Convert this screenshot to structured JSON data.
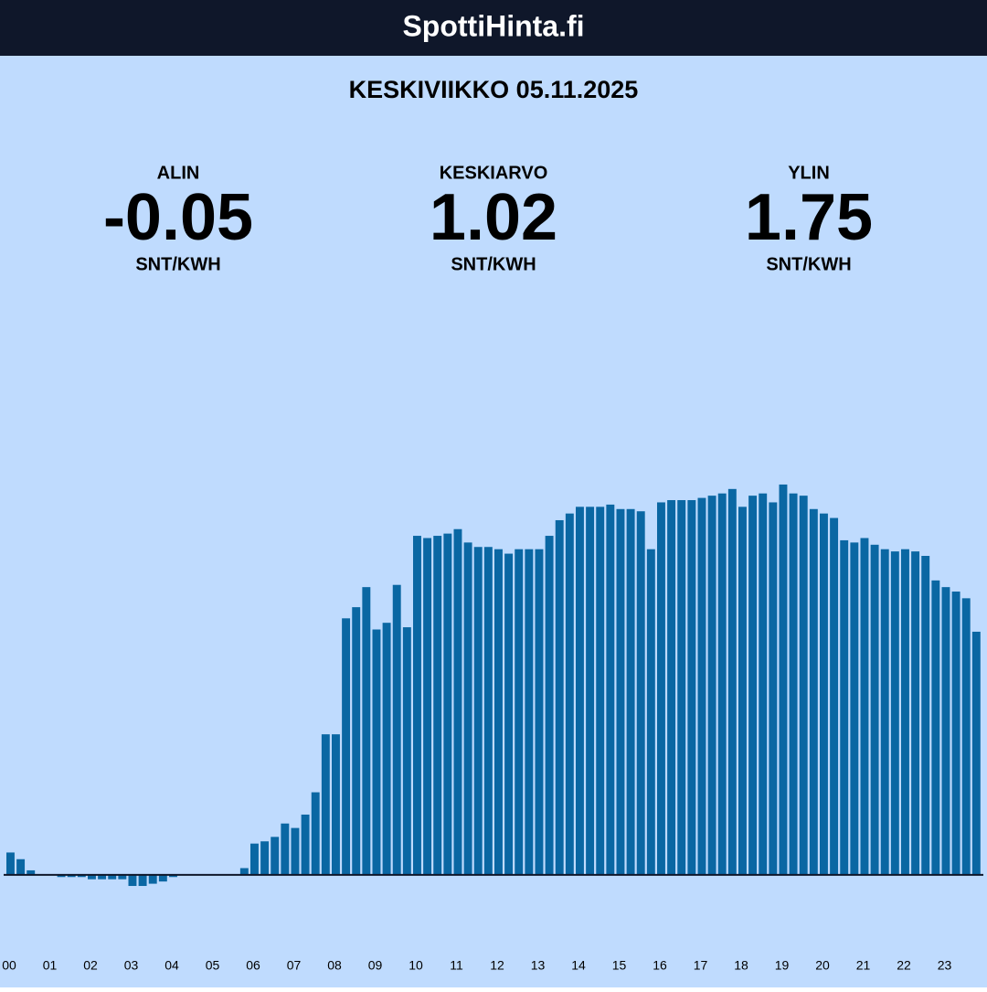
{
  "header": {
    "title": "SpottiHinta.fi"
  },
  "date": "KESKIVIIKKO 05.11.2025",
  "stats": [
    {
      "label": "ALIN",
      "value": "-0.05",
      "unit": "SNT/KWH"
    },
    {
      "label": "KESKIARVO",
      "value": "1.02",
      "unit": "SNT/KWH"
    },
    {
      "label": "YLIN",
      "value": "1.75",
      "unit": "SNT/KWH"
    }
  ],
  "chart_data": {
    "type": "bar",
    "color": "#0a67a3",
    "ylim": [
      -0.3,
      2.5
    ],
    "categories": [
      "00",
      null,
      null,
      null,
      "01",
      null,
      null,
      null,
      "02",
      null,
      null,
      null,
      "03",
      null,
      null,
      null,
      "04",
      null,
      null,
      null,
      "05",
      null,
      null,
      null,
      "06",
      null,
      null,
      null,
      "07",
      null,
      null,
      null,
      "08",
      null,
      null,
      null,
      "09",
      null,
      null,
      null,
      "10",
      null,
      null,
      null,
      "11",
      null,
      null,
      null,
      "12",
      null,
      null,
      null,
      "13",
      null,
      null,
      null,
      "14",
      null,
      null,
      null,
      "15",
      null,
      null,
      null,
      "16",
      null,
      null,
      null,
      "17",
      null,
      null,
      null,
      "18",
      null,
      null,
      null,
      "19",
      null,
      null,
      null,
      "20",
      null,
      null,
      null,
      "21",
      null,
      null,
      null,
      "22",
      null,
      null,
      null,
      "23",
      null,
      null,
      null
    ],
    "values": [
      0.1,
      0.07,
      0.02,
      0.0,
      0,
      -0.01,
      -0.01,
      -0.01,
      -0.02,
      -0.02,
      -0.02,
      -0.02,
      -0.05,
      -0.05,
      -0.04,
      -0.03,
      -0.01,
      0,
      0,
      0,
      0,
      0,
      0,
      0.03,
      0.14,
      0.15,
      0.17,
      0.23,
      0.21,
      0.27,
      0.37,
      0.63,
      0.63,
      1.15,
      1.2,
      1.29,
      1.1,
      1.13,
      1.3,
      1.11,
      1.52,
      1.51,
      1.52,
      1.53,
      1.55,
      1.49,
      1.47,
      1.47,
      1.46,
      1.44,
      1.46,
      1.46,
      1.46,
      1.52,
      1.59,
      1.62,
      1.65,
      1.65,
      1.65,
      1.66,
      1.64,
      1.64,
      1.63,
      1.46,
      1.67,
      1.68,
      1.68,
      1.68,
      1.69,
      1.7,
      1.71,
      1.73,
      1.65,
      1.7,
      1.71,
      1.67,
      1.75,
      1.71,
      1.7,
      1.64,
      1.62,
      1.6,
      1.5,
      1.49,
      1.51,
      1.48,
      1.46,
      1.45,
      1.46,
      1.45,
      1.43,
      1.32,
      1.29,
      1.27,
      1.24,
      1.09
    ]
  }
}
